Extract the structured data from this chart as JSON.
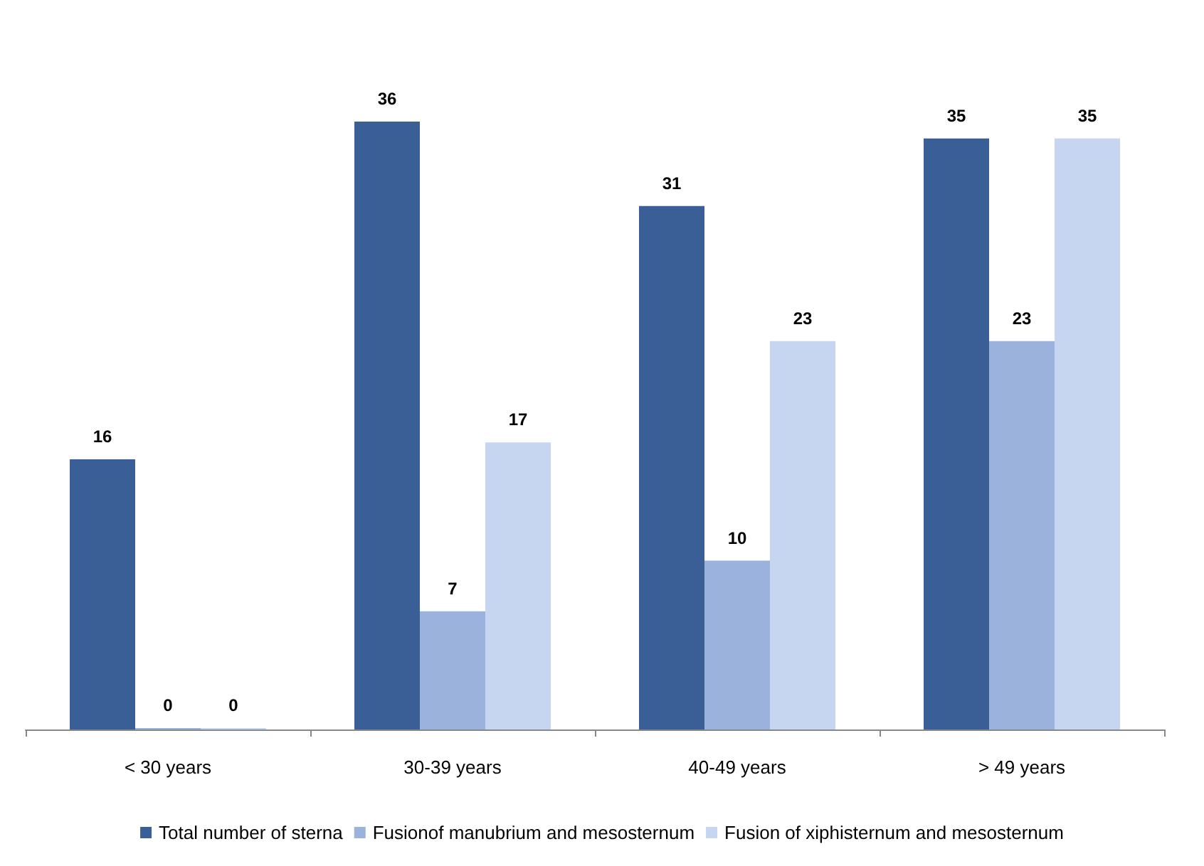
{
  "chart_data": {
    "type": "bar",
    "categories": [
      "< 30 years",
      "30-39 years",
      "40-49 years",
      "> 49 years"
    ],
    "series": [
      {
        "name": "Total number of sterna",
        "color": "#3a5f96",
        "values": [
          16,
          36,
          31,
          35
        ]
      },
      {
        "name": "Fusionof manubrium and mesosternum",
        "color": "#9bb3dc",
        "values": [
          0,
          7,
          10,
          23
        ]
      },
      {
        "name": "Fusion of xiphisternum and mesosternum",
        "color": "#c6d6f0",
        "values": [
          0,
          17,
          23,
          35
        ]
      }
    ],
    "data_labels": true,
    "grid": false,
    "legend": "bottom"
  }
}
